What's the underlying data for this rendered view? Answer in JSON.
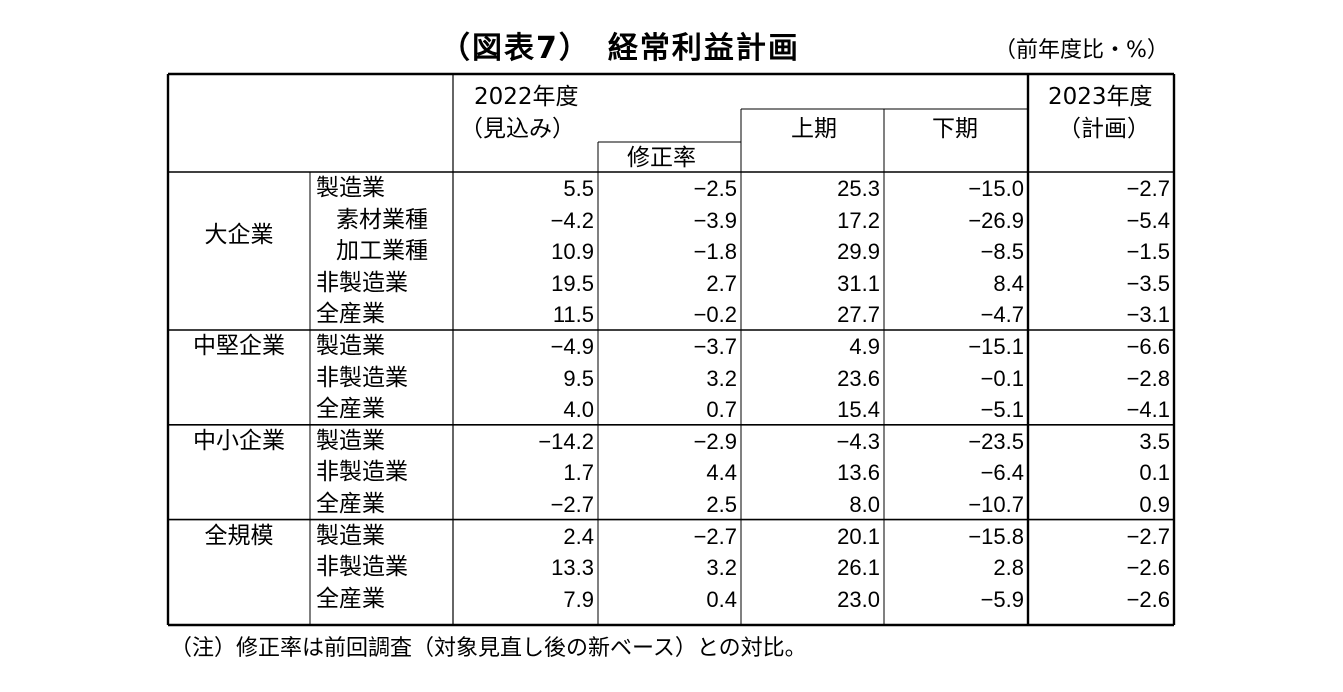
{
  "title": "（図表7）　経常利益計画",
  "unit": "（前年度比・%）",
  "headers": {
    "fy2022_line1": "2022年度",
    "fy2022_line2": "（見込み）",
    "revision": "修正率",
    "first_half": "上期",
    "second_half": "下期",
    "fy2023_line1": "2023年度",
    "fy2023_line2": "（計画）"
  },
  "groups": [
    {
      "name": "大企業",
      "rows": [
        {
          "label": "製造業",
          "indent": false,
          "values": [
            "5.5",
            "−2.5",
            "25.3",
            "−15.0",
            "−2.7"
          ]
        },
        {
          "label": "素材業種",
          "indent": true,
          "values": [
            "−4.2",
            "−3.9",
            "17.2",
            "−26.9",
            "−5.4"
          ]
        },
        {
          "label": "加工業種",
          "indent": true,
          "values": [
            "10.9",
            "−1.8",
            "29.9",
            "−8.5",
            "−1.5"
          ]
        },
        {
          "label": "非製造業",
          "indent": false,
          "values": [
            "19.5",
            "2.7",
            "31.1",
            "8.4",
            "−3.5"
          ]
        },
        {
          "label": "全産業",
          "indent": false,
          "values": [
            "11.5",
            "−0.2",
            "27.7",
            "−4.7",
            "−3.1"
          ]
        }
      ]
    },
    {
      "name": "中堅企業",
      "rows": [
        {
          "label": "製造業",
          "indent": false,
          "values": [
            "−4.9",
            "−3.7",
            "4.9",
            "−15.1",
            "−6.6"
          ]
        },
        {
          "label": "非製造業",
          "indent": false,
          "values": [
            "9.5",
            "3.2",
            "23.6",
            "−0.1",
            "−2.8"
          ]
        },
        {
          "label": "全産業",
          "indent": false,
          "values": [
            "4.0",
            "0.7",
            "15.4",
            "−5.1",
            "−4.1"
          ]
        }
      ]
    },
    {
      "name": "中小企業",
      "rows": [
        {
          "label": "製造業",
          "indent": false,
          "values": [
            "−14.2",
            "−2.9",
            "−4.3",
            "−23.5",
            "3.5"
          ]
        },
        {
          "label": "非製造業",
          "indent": false,
          "values": [
            "1.7",
            "4.4",
            "13.6",
            "−6.4",
            "0.1"
          ]
        },
        {
          "label": "全産業",
          "indent": false,
          "values": [
            "−2.7",
            "2.5",
            "8.0",
            "−10.7",
            "0.9"
          ]
        }
      ]
    },
    {
      "name": "全規模",
      "rows": [
        {
          "label": "製造業",
          "indent": false,
          "values": [
            "2.4",
            "−2.7",
            "20.1",
            "−15.8",
            "−2.7"
          ]
        },
        {
          "label": "非製造業",
          "indent": false,
          "values": [
            "13.3",
            "3.2",
            "26.1",
            "2.8",
            "−2.6"
          ]
        },
        {
          "label": "全産業",
          "indent": false,
          "values": [
            "7.9",
            "0.4",
            "23.0",
            "−5.9",
            "−2.6"
          ]
        }
      ]
    }
  ],
  "note": "（注）修正率は前回調査（対象見直し後の新ベース）との対比。",
  "chart_data": {
    "type": "table",
    "title": "（図表7）　経常利益計画",
    "unit": "（前年度比・%）",
    "columns": [
      "2022年度（見込み）",
      "修正率",
      "上期",
      "下期",
      "2023年度（計画）"
    ],
    "rows": [
      {
        "group": "大企業",
        "sector": "製造業",
        "values": [
          5.5,
          -2.5,
          25.3,
          -15.0,
          -2.7
        ]
      },
      {
        "group": "大企業",
        "sector": "素材業種",
        "values": [
          -4.2,
          -3.9,
          17.2,
          -26.9,
          -5.4
        ]
      },
      {
        "group": "大企業",
        "sector": "加工業種",
        "values": [
          10.9,
          -1.8,
          29.9,
          -8.5,
          -1.5
        ]
      },
      {
        "group": "大企業",
        "sector": "非製造業",
        "values": [
          19.5,
          2.7,
          31.1,
          8.4,
          -3.5
        ]
      },
      {
        "group": "大企業",
        "sector": "全産業",
        "values": [
          11.5,
          -0.2,
          27.7,
          -4.7,
          -3.1
        ]
      },
      {
        "group": "中堅企業",
        "sector": "製造業",
        "values": [
          -4.9,
          -3.7,
          4.9,
          -15.1,
          -6.6
        ]
      },
      {
        "group": "中堅企業",
        "sector": "非製造業",
        "values": [
          9.5,
          3.2,
          23.6,
          -0.1,
          -2.8
        ]
      },
      {
        "group": "中堅企業",
        "sector": "全産業",
        "values": [
          4.0,
          0.7,
          15.4,
          -5.1,
          -4.1
        ]
      },
      {
        "group": "中小企業",
        "sector": "製造業",
        "values": [
          -14.2,
          -2.9,
          -4.3,
          -23.5,
          3.5
        ]
      },
      {
        "group": "中小企業",
        "sector": "非製造業",
        "values": [
          1.7,
          4.4,
          13.6,
          -6.4,
          0.1
        ]
      },
      {
        "group": "中小企業",
        "sector": "全産業",
        "values": [
          -2.7,
          2.5,
          8.0,
          -10.7,
          0.9
        ]
      },
      {
        "group": "全規模",
        "sector": "製造業",
        "values": [
          2.4,
          -2.7,
          20.1,
          -15.8,
          -2.7
        ]
      },
      {
        "group": "全規模",
        "sector": "非製造業",
        "values": [
          13.3,
          3.2,
          26.1,
          2.8,
          -2.6
        ]
      },
      {
        "group": "全規模",
        "sector": "全産業",
        "values": [
          7.9,
          0.4,
          23.0,
          -5.9,
          -2.6
        ]
      }
    ]
  }
}
